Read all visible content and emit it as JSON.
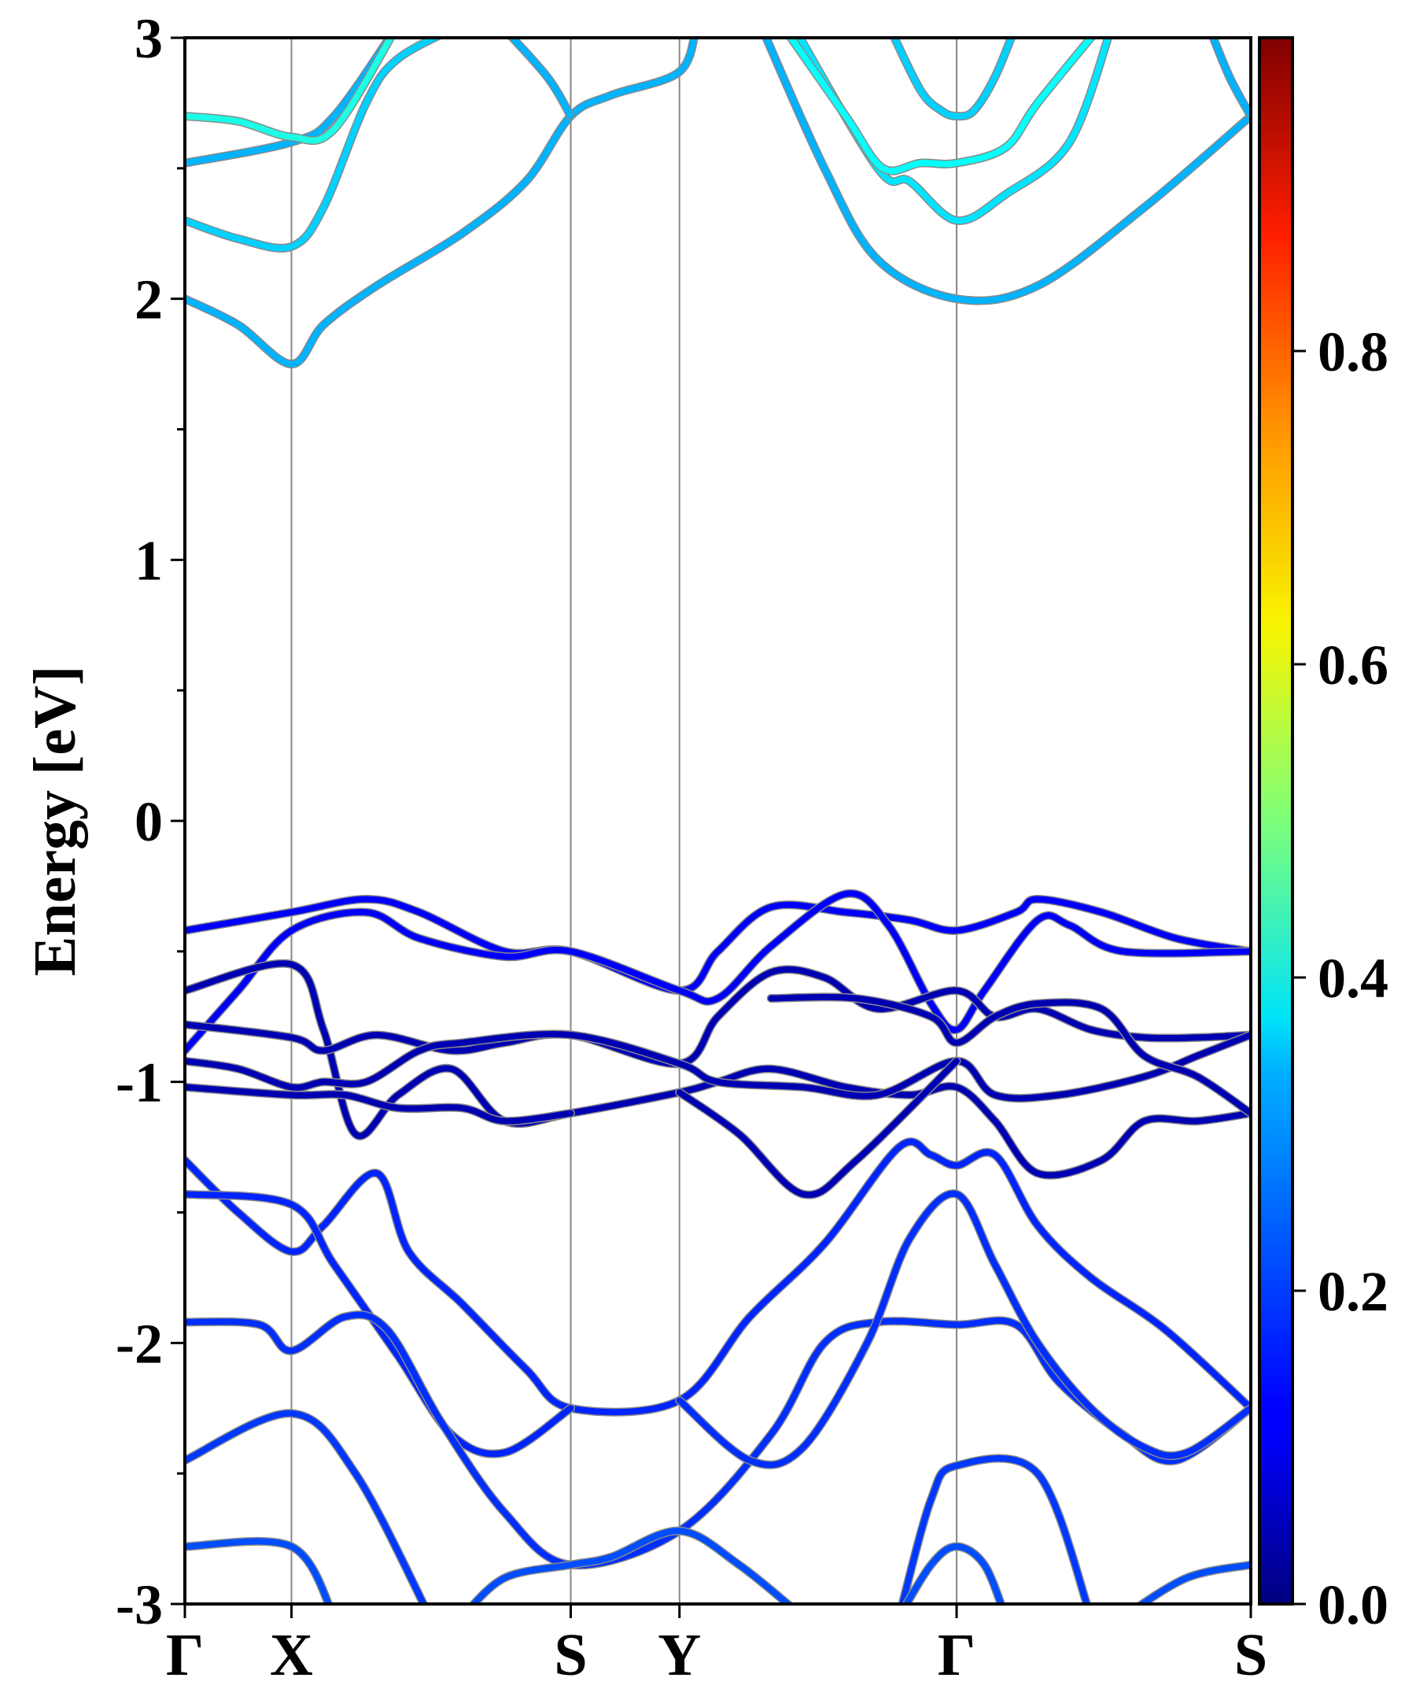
{
  "chart_data": {
    "type": "line",
    "title": "",
    "xlabel": "",
    "ylabel": "Energy [eV]",
    "ylim": [
      -3,
      3
    ],
    "yticks": [
      "-3",
      "-2",
      "-1",
      "0",
      "1",
      "2",
      "3"
    ],
    "ytick_values": [
      -3,
      -2,
      -1,
      0,
      1,
      2,
      3
    ],
    "kpoints": [
      {
        "label": "Γ",
        "k": 0
      },
      {
        "label": "X",
        "k": 0.1
      },
      {
        "label": "S",
        "k": 0.362
      },
      {
        "label": "Y",
        "k": 0.464
      },
      {
        "label": "Γ",
        "k": 0.724
      },
      {
        "label": "S",
        "k": 1.0
      }
    ],
    "colorbar": {
      "colormap": "jet",
      "range": [
        0,
        1
      ],
      "ticks": [
        "0.0",
        "0.2",
        "0.4",
        "0.6",
        "0.8"
      ],
      "tick_values": [
        0,
        0.2,
        0.4,
        0.6,
        0.8
      ]
    },
    "bands": [
      {
        "w": 0.3,
        "pts": [
          [
            0,
            2.0
          ],
          [
            0.05,
            1.9
          ],
          [
            0.1,
            1.75
          ],
          [
            0.13,
            1.9
          ],
          [
            0.18,
            2.05
          ],
          [
            0.26,
            2.25
          ],
          [
            0.32,
            2.45
          ],
          [
            0.362,
            2.7
          ],
          [
            0.4,
            2.78
          ],
          [
            0.464,
            2.87
          ],
          [
            0.48,
            3.05
          ]
        ]
      },
      {
        "w": 0.3,
        "pts": [
          [
            0.296,
            3.05
          ],
          [
            0.34,
            2.85
          ],
          [
            0.362,
            2.7
          ]
        ]
      },
      {
        "w": 0.3,
        "pts": [
          [
            0.54,
            3.05
          ],
          [
            0.6,
            2.5
          ],
          [
            0.65,
            2.15
          ],
          [
            0.724,
            2.0
          ],
          [
            0.8,
            2.05
          ],
          [
            0.9,
            2.35
          ],
          [
            1.0,
            2.7
          ]
        ]
      },
      {
        "w": 0.3,
        "pts": [
          [
            1.0,
            2.7
          ],
          [
            0.98,
            2.85
          ],
          [
            0.96,
            3.05
          ]
        ]
      },
      {
        "w": 0.33,
        "pts": [
          [
            0,
            2.3
          ],
          [
            0.05,
            2.23
          ],
          [
            0.1,
            2.2
          ],
          [
            0.13,
            2.35
          ],
          [
            0.17,
            2.75
          ],
          [
            0.2,
            2.92
          ],
          [
            0.26,
            3.05
          ]
        ]
      },
      {
        "w": 0.3,
        "pts": [
          [
            0,
            2.52
          ],
          [
            0.1,
            2.6
          ],
          [
            0.14,
            2.7
          ],
          [
            0.2,
            3.05
          ]
        ]
      },
      {
        "w": 0.4,
        "pts": [
          [
            0,
            2.7
          ],
          [
            0.05,
            2.68
          ],
          [
            0.1,
            2.62
          ],
          [
            0.14,
            2.65
          ],
          [
            0.2,
            3.05
          ]
        ]
      },
      {
        "w": 0.35,
        "pts": [
          [
            0.57,
            3.05
          ],
          [
            0.65,
            2.5
          ],
          [
            0.68,
            2.45
          ],
          [
            0.724,
            2.3
          ],
          [
            0.77,
            2.4
          ],
          [
            0.83,
            2.6
          ],
          [
            0.87,
            3.05
          ]
        ]
      },
      {
        "w": 0.38,
        "pts": [
          [
            0.56,
            3.05
          ],
          [
            0.62,
            2.7
          ],
          [
            0.655,
            2.5
          ],
          [
            0.69,
            2.52
          ],
          [
            0.724,
            2.52
          ],
          [
            0.77,
            2.58
          ],
          [
            0.8,
            2.75
          ],
          [
            0.86,
            3.05
          ]
        ]
      },
      {
        "w": 0.33,
        "pts": [
          [
            0.66,
            3.05
          ],
          [
            0.69,
            2.8
          ],
          [
            0.71,
            2.72
          ],
          [
            0.724,
            2.7
          ],
          [
            0.74,
            2.72
          ],
          [
            0.76,
            2.85
          ],
          [
            0.78,
            3.05
          ]
        ]
      },
      {
        "w": 0.12,
        "pts": [
          [
            0,
            -0.42
          ],
          [
            0.1,
            -0.35
          ],
          [
            0.17,
            -0.3
          ],
          [
            0.22,
            -0.35
          ],
          [
            0.3,
            -0.5
          ],
          [
            0.362,
            -0.5
          ],
          [
            0.464,
            -0.65
          ],
          [
            0.5,
            -0.5
          ],
          [
            0.55,
            -0.33
          ],
          [
            0.62,
            -0.35
          ],
          [
            0.68,
            -0.38
          ],
          [
            0.724,
            -0.42
          ],
          [
            0.78,
            -0.35
          ],
          [
            0.8,
            -0.3
          ],
          [
            0.86,
            -0.35
          ],
          [
            0.93,
            -0.45
          ],
          [
            1.0,
            -0.5
          ]
        ]
      },
      {
        "w": 0.12,
        "pts": [
          [
            0,
            -0.88
          ],
          [
            0.05,
            -0.65
          ],
          [
            0.1,
            -0.42
          ],
          [
            0.17,
            -0.35
          ],
          [
            0.22,
            -0.45
          ],
          [
            0.3,
            -0.52
          ],
          [
            0.362,
            -0.5
          ],
          [
            0.464,
            -0.65
          ],
          [
            0.5,
            -0.68
          ],
          [
            0.55,
            -0.48
          ],
          [
            0.62,
            -0.28
          ],
          [
            0.66,
            -0.4
          ],
          [
            0.7,
            -0.7
          ],
          [
            0.724,
            -0.8
          ],
          [
            0.75,
            -0.65
          ],
          [
            0.8,
            -0.38
          ],
          [
            0.83,
            -0.4
          ],
          [
            0.88,
            -0.5
          ],
          [
            1.0,
            -0.5
          ]
        ]
      },
      {
        "w": 0.05,
        "pts": [
          [
            0,
            -0.65
          ],
          [
            0.1,
            -0.55
          ],
          [
            0.13,
            -0.8
          ],
          [
            0.16,
            -1.2
          ],
          [
            0.2,
            -1.05
          ],
          [
            0.25,
            -0.95
          ],
          [
            0.3,
            -1.15
          ],
          [
            0.362,
            -1.12
          ],
          [
            0.464,
            -1.04
          ],
          [
            0.5,
            -1.0
          ],
          [
            0.55,
            -0.95
          ],
          [
            0.62,
            -1.02
          ],
          [
            0.68,
            -1.05
          ],
          [
            0.724,
            -1.02
          ],
          [
            0.76,
            -1.15
          ],
          [
            0.8,
            -1.35
          ],
          [
            0.86,
            -1.3
          ],
          [
            0.9,
            -1.15
          ],
          [
            0.95,
            -1.15
          ],
          [
            1.0,
            -1.12
          ]
        ]
      },
      {
        "w": 0.05,
        "pts": [
          [
            0,
            -0.78
          ],
          [
            0.1,
            -0.83
          ],
          [
            0.13,
            -0.88
          ],
          [
            0.18,
            -0.82
          ],
          [
            0.25,
            -0.88
          ],
          [
            0.3,
            -0.85
          ],
          [
            0.362,
            -0.82
          ],
          [
            0.464,
            -0.93
          ],
          [
            0.5,
            -0.75
          ],
          [
            0.55,
            -0.58
          ],
          [
            0.6,
            -0.6
          ],
          [
            0.65,
            -0.72
          ],
          [
            0.724,
            -0.65
          ],
          [
            0.76,
            -0.75
          ],
          [
            0.8,
            -0.72
          ],
          [
            0.85,
            -0.8
          ],
          [
            0.9,
            -0.83
          ],
          [
            0.95,
            -0.83
          ],
          [
            1.0,
            -0.82
          ]
        ]
      },
      {
        "w": 0.05,
        "pts": [
          [
            0,
            -0.92
          ],
          [
            0.05,
            -0.95
          ],
          [
            0.1,
            -1.02
          ],
          [
            0.13,
            -1.0
          ],
          [
            0.17,
            -1.0
          ],
          [
            0.22,
            -0.88
          ],
          [
            0.26,
            -0.85
          ],
          [
            0.362,
            -0.82
          ],
          [
            0.464,
            -0.93
          ],
          [
            0.5,
            -1.0
          ],
          [
            0.58,
            -1.02
          ],
          [
            0.65,
            -1.05
          ],
          [
            0.724,
            -0.92
          ],
          [
            0.76,
            -1.05
          ],
          [
            0.82,
            -1.05
          ],
          [
            0.9,
            -0.98
          ],
          [
            0.95,
            -0.9
          ],
          [
            1.0,
            -0.82
          ]
        ]
      },
      {
        "w": 0.05,
        "pts": [
          [
            0,
            -1.02
          ],
          [
            0.1,
            -1.05
          ],
          [
            0.15,
            -1.05
          ],
          [
            0.2,
            -1.1
          ],
          [
            0.26,
            -1.1
          ],
          [
            0.3,
            -1.15
          ],
          [
            0.362,
            -1.12
          ]
        ]
      },
      {
        "w": 0.05,
        "pts": [
          [
            0.464,
            -1.04
          ],
          [
            0.52,
            -1.2
          ],
          [
            0.58,
            -1.43
          ],
          [
            0.63,
            -1.3
          ],
          [
            0.724,
            -0.92
          ]
        ]
      },
      {
        "w": 0.05,
        "pts": [
          [
            0.55,
            -0.68
          ],
          [
            0.63,
            -0.68
          ],
          [
            0.7,
            -0.75
          ],
          [
            0.724,
            -0.85
          ],
          [
            0.76,
            -0.75
          ],
          [
            0.8,
            -0.7
          ],
          [
            0.86,
            -0.72
          ],
          [
            0.9,
            -0.9
          ],
          [
            0.95,
            -0.98
          ],
          [
            1.0,
            -1.12
          ]
        ]
      },
      {
        "w": 0.16,
        "pts": [
          [
            0,
            -1.3
          ],
          [
            0.05,
            -1.5
          ],
          [
            0.1,
            -1.65
          ],
          [
            0.13,
            -1.55
          ],
          [
            0.18,
            -1.35
          ],
          [
            0.21,
            -1.65
          ],
          [
            0.26,
            -1.85
          ],
          [
            0.32,
            -2.1
          ],
          [
            0.362,
            -2.25
          ],
          [
            0.464,
            -2.22
          ],
          [
            0.53,
            -1.9
          ],
          [
            0.6,
            -1.62
          ],
          [
            0.67,
            -1.25
          ],
          [
            0.7,
            -1.28
          ],
          [
            0.724,
            -1.32
          ],
          [
            0.76,
            -1.28
          ],
          [
            0.8,
            -1.55
          ],
          [
            0.85,
            -1.75
          ],
          [
            0.92,
            -1.95
          ],
          [
            1.0,
            -2.25
          ]
        ]
      },
      {
        "w": 0.16,
        "pts": [
          [
            0,
            -1.43
          ],
          [
            0.1,
            -1.47
          ],
          [
            0.14,
            -1.7
          ],
          [
            0.2,
            -2.05
          ],
          [
            0.25,
            -2.35
          ],
          [
            0.3,
            -2.42
          ],
          [
            0.362,
            -2.25
          ]
        ]
      },
      {
        "w": 0.17,
        "pts": [
          [
            0,
            -1.92
          ],
          [
            0.07,
            -1.93
          ],
          [
            0.1,
            -2.03
          ],
          [
            0.15,
            -1.9
          ],
          [
            0.19,
            -1.95
          ],
          [
            0.24,
            -2.3
          ],
          [
            0.3,
            -2.65
          ],
          [
            0.362,
            -2.85
          ],
          [
            0.464,
            -2.72
          ],
          [
            0.55,
            -2.35
          ],
          [
            0.6,
            -2.0
          ],
          [
            0.65,
            -1.92
          ],
          [
            0.724,
            -1.93
          ],
          [
            0.78,
            -1.93
          ],
          [
            0.82,
            -2.15
          ],
          [
            0.88,
            -2.35
          ],
          [
            0.93,
            -2.45
          ],
          [
            1.0,
            -2.25
          ]
        ]
      },
      {
        "w": 0.18,
        "pts": [
          [
            0,
            -2.45
          ],
          [
            0.1,
            -2.27
          ],
          [
            0.16,
            -2.5
          ],
          [
            0.23,
            -3.05
          ]
        ]
      },
      {
        "w": 0.2,
        "pts": [
          [
            0.26,
            -3.05
          ],
          [
            0.3,
            -2.9
          ],
          [
            0.362,
            -2.85
          ],
          [
            0.4,
            -2.82
          ],
          [
            0.464,
            -2.72
          ],
          [
            0.52,
            -2.85
          ],
          [
            0.58,
            -3.05
          ]
        ]
      },
      {
        "w": 0.17,
        "pts": [
          [
            0.464,
            -2.22
          ],
          [
            0.53,
            -2.45
          ],
          [
            0.58,
            -2.4
          ],
          [
            0.64,
            -2.0
          ],
          [
            0.68,
            -1.6
          ],
          [
            0.724,
            -1.43
          ],
          [
            0.76,
            -1.7
          ],
          [
            0.8,
            -2.0
          ],
          [
            0.85,
            -2.25
          ],
          [
            0.9,
            -2.4
          ],
          [
            0.94,
            -2.42
          ],
          [
            1.0,
            -2.25
          ]
        ]
      },
      {
        "w": 0.2,
        "pts": [
          [
            0,
            -2.78
          ],
          [
            0.1,
            -2.78
          ],
          [
            0.14,
            -3.05
          ]
        ]
      },
      {
        "w": 0.18,
        "pts": [
          [
            0.67,
            -3.05
          ],
          [
            0.7,
            -2.6
          ],
          [
            0.724,
            -2.47
          ],
          [
            0.8,
            -2.5
          ],
          [
            0.85,
            -3.05
          ]
        ]
      },
      {
        "w": 0.2,
        "pts": [
          [
            0.67,
            -3.05
          ],
          [
            0.7,
            -2.85
          ],
          [
            0.724,
            -2.78
          ],
          [
            0.75,
            -2.85
          ],
          [
            0.77,
            -3.05
          ]
        ]
      },
      {
        "w": 0.2,
        "pts": [
          [
            0.88,
            -3.05
          ],
          [
            0.94,
            -2.9
          ],
          [
            1.0,
            -2.85
          ]
        ]
      }
    ]
  }
}
